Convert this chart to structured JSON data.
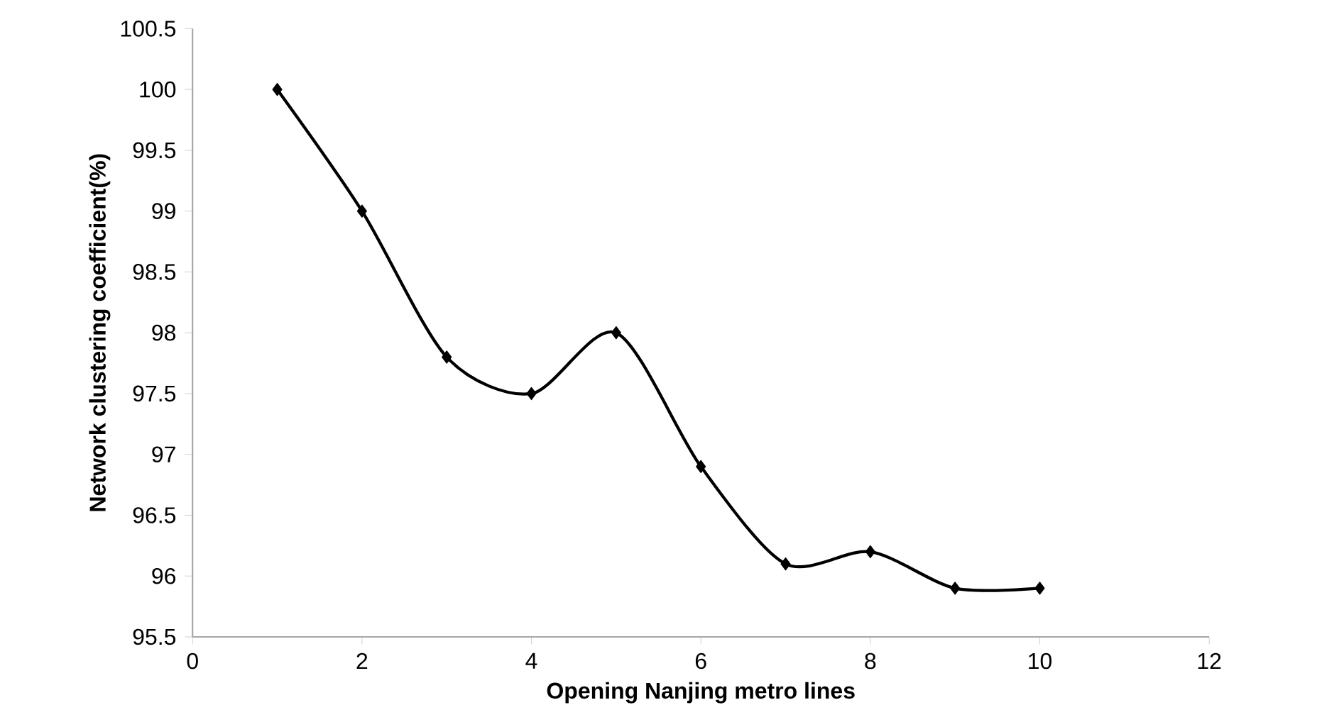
{
  "chart_data": {
    "type": "line",
    "xlabel": "Opening Nanjing metro lines",
    "ylabel": "Network clustering coefficient(%)",
    "x": [
      1,
      2,
      3,
      4,
      5,
      6,
      7,
      8,
      9,
      10
    ],
    "series": [
      {
        "color": "#000000",
        "values": [
          100,
          99,
          97.8,
          97.5,
          98,
          96.9,
          96.1,
          96.2,
          95.9,
          95.9
        ]
      }
    ],
    "xlim": [
      0,
      12
    ],
    "xticks": [
      0,
      2,
      4,
      6,
      8,
      10,
      12
    ],
    "ylim": [
      95.5,
      100.5
    ],
    "yticks": [
      95.5,
      96,
      96.5,
      97,
      97.5,
      98,
      98.5,
      99,
      99.5,
      100,
      100.5
    ],
    "marker": "diamond",
    "line_style": "solid"
  }
}
